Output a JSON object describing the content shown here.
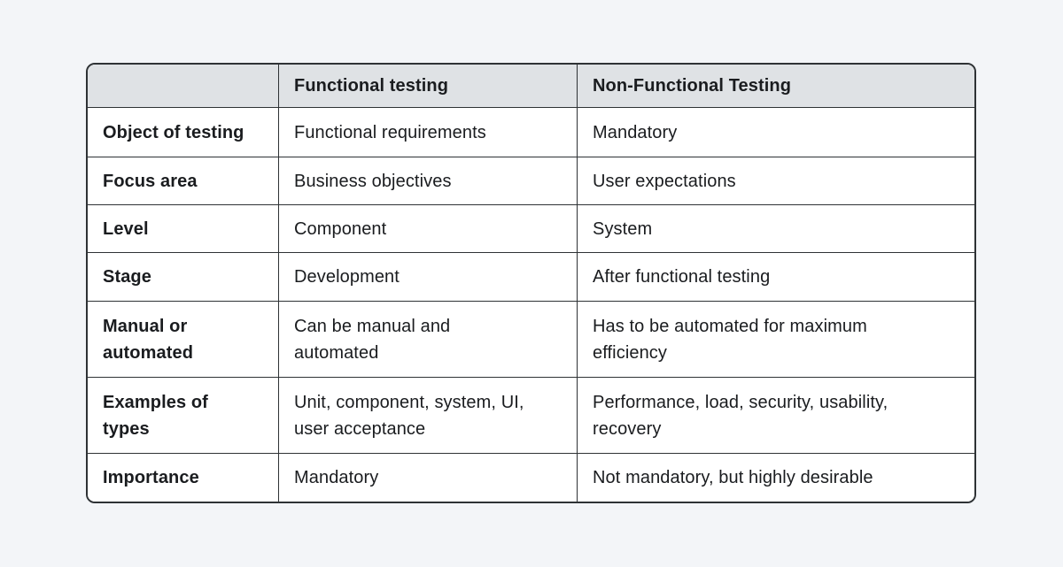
{
  "page": {
    "background_color": "#f3f5f8"
  },
  "table": {
    "border_color": "#2e3235",
    "header_bg_color": "#dfe2e5",
    "cell_bg_color": "#ffffff",
    "text_color": "#1a1c1f",
    "columns": [
      "",
      "Functional testing",
      "Non-Functional Testing"
    ],
    "rows": [
      {
        "label": "Object of testing",
        "functional": "Functional requirements",
        "non_functional": "Mandatory"
      },
      {
        "label": "Focus area",
        "functional": "Business objectives",
        "non_functional": "User expectations"
      },
      {
        "label": "Level",
        "functional": "Component",
        "non_functional": "System"
      },
      {
        "label": "Stage",
        "functional": "Development",
        "non_functional": "After functional testing"
      },
      {
        "label": "Manual or\nautomated",
        "functional": "Can be manual and\nautomated",
        "non_functional": "Has to be automated for maximum\nefficiency"
      },
      {
        "label": "Examples of\ntypes",
        "functional": "Unit, component, system, UI,\nuser acceptance",
        "non_functional": "Performance, load, security, usability,\nrecovery"
      },
      {
        "label": "Importance",
        "functional": "Mandatory",
        "non_functional": "Not mandatory, but highly desirable"
      }
    ]
  }
}
